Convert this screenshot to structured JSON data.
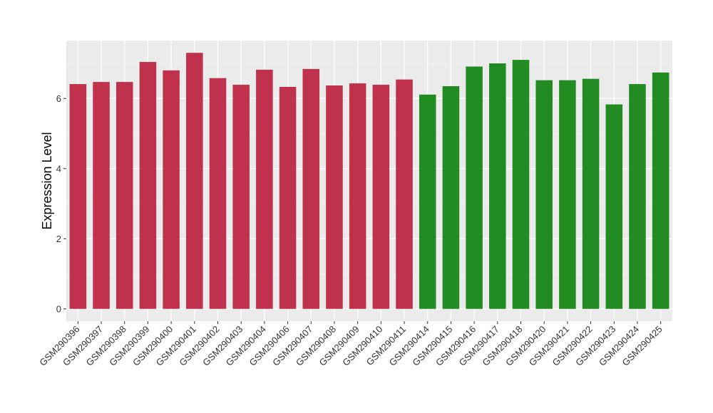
{
  "chart_data": {
    "type": "bar",
    "title": "",
    "xlabel": "",
    "ylabel": "Expression Level",
    "ylim": [
      -0.35,
      7.65
    ],
    "yticks": [
      0,
      2,
      4,
      6
    ],
    "grid": true,
    "background_color": "#ebebeb",
    "categories": [
      "GSM290396",
      "GSM290397",
      "GSM290398",
      "GSM290399",
      "GSM290400",
      "GSM290401",
      "GSM290402",
      "GSM290403",
      "GSM290404",
      "GSM290406",
      "GSM290407",
      "GSM290408",
      "GSM290409",
      "GSM290410",
      "GSM290411",
      "GSM290414",
      "GSM290415",
      "GSM290416",
      "GSM290417",
      "GSM290418",
      "GSM290420",
      "GSM290421",
      "GSM290422",
      "GSM290423",
      "GSM290424",
      "GSM290425"
    ],
    "values": [
      6.41,
      6.47,
      6.47,
      7.04,
      6.8,
      7.3,
      6.58,
      6.39,
      6.82,
      6.33,
      6.84,
      6.37,
      6.43,
      6.39,
      6.54,
      6.11,
      6.35,
      6.91,
      7.0,
      7.1,
      6.52,
      6.52,
      6.56,
      5.83,
      6.41,
      6.74
    ],
    "bar_colors": [
      "#c0314b",
      "#c0314b",
      "#c0314b",
      "#c0314b",
      "#c0314b",
      "#c0314b",
      "#c0314b",
      "#c0314b",
      "#c0314b",
      "#c0314b",
      "#c0314b",
      "#c0314b",
      "#c0314b",
      "#c0314b",
      "#c0314b",
      "#228b22",
      "#228b22",
      "#228b22",
      "#228b22",
      "#228b22",
      "#228b22",
      "#228b22",
      "#228b22",
      "#228b22",
      "#228b22",
      "#228b22"
    ]
  }
}
